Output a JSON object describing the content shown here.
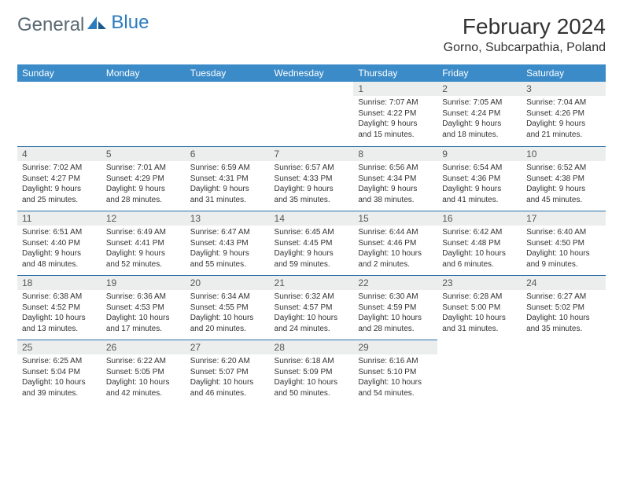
{
  "brand": {
    "part1": "General",
    "part2": "Blue"
  },
  "title": "February 2024",
  "location": "Gorno, Subcarpathia, Poland",
  "colors": {
    "header_bg": "#3b8bc8",
    "daynum_bg": "#eceeee",
    "rule": "#2b6fa8",
    "brand_gray": "#5a6a72",
    "brand_blue": "#2b7bbf",
    "text": "#333333",
    "page_bg": "#ffffff"
  },
  "fonts": {
    "title_size": 28,
    "location_size": 16,
    "th_size": 12,
    "cell_size": 10
  },
  "weekdays": [
    "Sunday",
    "Monday",
    "Tuesday",
    "Wednesday",
    "Thursday",
    "Friday",
    "Saturday"
  ],
  "weeks": [
    [
      null,
      null,
      null,
      null,
      {
        "n": "1",
        "sr": "Sunrise: 7:07 AM",
        "ss": "Sunset: 4:22 PM",
        "d1": "Daylight: 9 hours",
        "d2": "and 15 minutes."
      },
      {
        "n": "2",
        "sr": "Sunrise: 7:05 AM",
        "ss": "Sunset: 4:24 PM",
        "d1": "Daylight: 9 hours",
        "d2": "and 18 minutes."
      },
      {
        "n": "3",
        "sr": "Sunrise: 7:04 AM",
        "ss": "Sunset: 4:26 PM",
        "d1": "Daylight: 9 hours",
        "d2": "and 21 minutes."
      }
    ],
    [
      {
        "n": "4",
        "sr": "Sunrise: 7:02 AM",
        "ss": "Sunset: 4:27 PM",
        "d1": "Daylight: 9 hours",
        "d2": "and 25 minutes."
      },
      {
        "n": "5",
        "sr": "Sunrise: 7:01 AM",
        "ss": "Sunset: 4:29 PM",
        "d1": "Daylight: 9 hours",
        "d2": "and 28 minutes."
      },
      {
        "n": "6",
        "sr": "Sunrise: 6:59 AM",
        "ss": "Sunset: 4:31 PM",
        "d1": "Daylight: 9 hours",
        "d2": "and 31 minutes."
      },
      {
        "n": "7",
        "sr": "Sunrise: 6:57 AM",
        "ss": "Sunset: 4:33 PM",
        "d1": "Daylight: 9 hours",
        "d2": "and 35 minutes."
      },
      {
        "n": "8",
        "sr": "Sunrise: 6:56 AM",
        "ss": "Sunset: 4:34 PM",
        "d1": "Daylight: 9 hours",
        "d2": "and 38 minutes."
      },
      {
        "n": "9",
        "sr": "Sunrise: 6:54 AM",
        "ss": "Sunset: 4:36 PM",
        "d1": "Daylight: 9 hours",
        "d2": "and 41 minutes."
      },
      {
        "n": "10",
        "sr": "Sunrise: 6:52 AM",
        "ss": "Sunset: 4:38 PM",
        "d1": "Daylight: 9 hours",
        "d2": "and 45 minutes."
      }
    ],
    [
      {
        "n": "11",
        "sr": "Sunrise: 6:51 AM",
        "ss": "Sunset: 4:40 PM",
        "d1": "Daylight: 9 hours",
        "d2": "and 48 minutes."
      },
      {
        "n": "12",
        "sr": "Sunrise: 6:49 AM",
        "ss": "Sunset: 4:41 PM",
        "d1": "Daylight: 9 hours",
        "d2": "and 52 minutes."
      },
      {
        "n": "13",
        "sr": "Sunrise: 6:47 AM",
        "ss": "Sunset: 4:43 PM",
        "d1": "Daylight: 9 hours",
        "d2": "and 55 minutes."
      },
      {
        "n": "14",
        "sr": "Sunrise: 6:45 AM",
        "ss": "Sunset: 4:45 PM",
        "d1": "Daylight: 9 hours",
        "d2": "and 59 minutes."
      },
      {
        "n": "15",
        "sr": "Sunrise: 6:44 AM",
        "ss": "Sunset: 4:46 PM",
        "d1": "Daylight: 10 hours",
        "d2": "and 2 minutes."
      },
      {
        "n": "16",
        "sr": "Sunrise: 6:42 AM",
        "ss": "Sunset: 4:48 PM",
        "d1": "Daylight: 10 hours",
        "d2": "and 6 minutes."
      },
      {
        "n": "17",
        "sr": "Sunrise: 6:40 AM",
        "ss": "Sunset: 4:50 PM",
        "d1": "Daylight: 10 hours",
        "d2": "and 9 minutes."
      }
    ],
    [
      {
        "n": "18",
        "sr": "Sunrise: 6:38 AM",
        "ss": "Sunset: 4:52 PM",
        "d1": "Daylight: 10 hours",
        "d2": "and 13 minutes."
      },
      {
        "n": "19",
        "sr": "Sunrise: 6:36 AM",
        "ss": "Sunset: 4:53 PM",
        "d1": "Daylight: 10 hours",
        "d2": "and 17 minutes."
      },
      {
        "n": "20",
        "sr": "Sunrise: 6:34 AM",
        "ss": "Sunset: 4:55 PM",
        "d1": "Daylight: 10 hours",
        "d2": "and 20 minutes."
      },
      {
        "n": "21",
        "sr": "Sunrise: 6:32 AM",
        "ss": "Sunset: 4:57 PM",
        "d1": "Daylight: 10 hours",
        "d2": "and 24 minutes."
      },
      {
        "n": "22",
        "sr": "Sunrise: 6:30 AM",
        "ss": "Sunset: 4:59 PM",
        "d1": "Daylight: 10 hours",
        "d2": "and 28 minutes."
      },
      {
        "n": "23",
        "sr": "Sunrise: 6:28 AM",
        "ss": "Sunset: 5:00 PM",
        "d1": "Daylight: 10 hours",
        "d2": "and 31 minutes."
      },
      {
        "n": "24",
        "sr": "Sunrise: 6:27 AM",
        "ss": "Sunset: 5:02 PM",
        "d1": "Daylight: 10 hours",
        "d2": "and 35 minutes."
      }
    ],
    [
      {
        "n": "25",
        "sr": "Sunrise: 6:25 AM",
        "ss": "Sunset: 5:04 PM",
        "d1": "Daylight: 10 hours",
        "d2": "and 39 minutes."
      },
      {
        "n": "26",
        "sr": "Sunrise: 6:22 AM",
        "ss": "Sunset: 5:05 PM",
        "d1": "Daylight: 10 hours",
        "d2": "and 42 minutes."
      },
      {
        "n": "27",
        "sr": "Sunrise: 6:20 AM",
        "ss": "Sunset: 5:07 PM",
        "d1": "Daylight: 10 hours",
        "d2": "and 46 minutes."
      },
      {
        "n": "28",
        "sr": "Sunrise: 6:18 AM",
        "ss": "Sunset: 5:09 PM",
        "d1": "Daylight: 10 hours",
        "d2": "and 50 minutes."
      },
      {
        "n": "29",
        "sr": "Sunrise: 6:16 AM",
        "ss": "Sunset: 5:10 PM",
        "d1": "Daylight: 10 hours",
        "d2": "and 54 minutes."
      },
      null,
      null
    ]
  ]
}
